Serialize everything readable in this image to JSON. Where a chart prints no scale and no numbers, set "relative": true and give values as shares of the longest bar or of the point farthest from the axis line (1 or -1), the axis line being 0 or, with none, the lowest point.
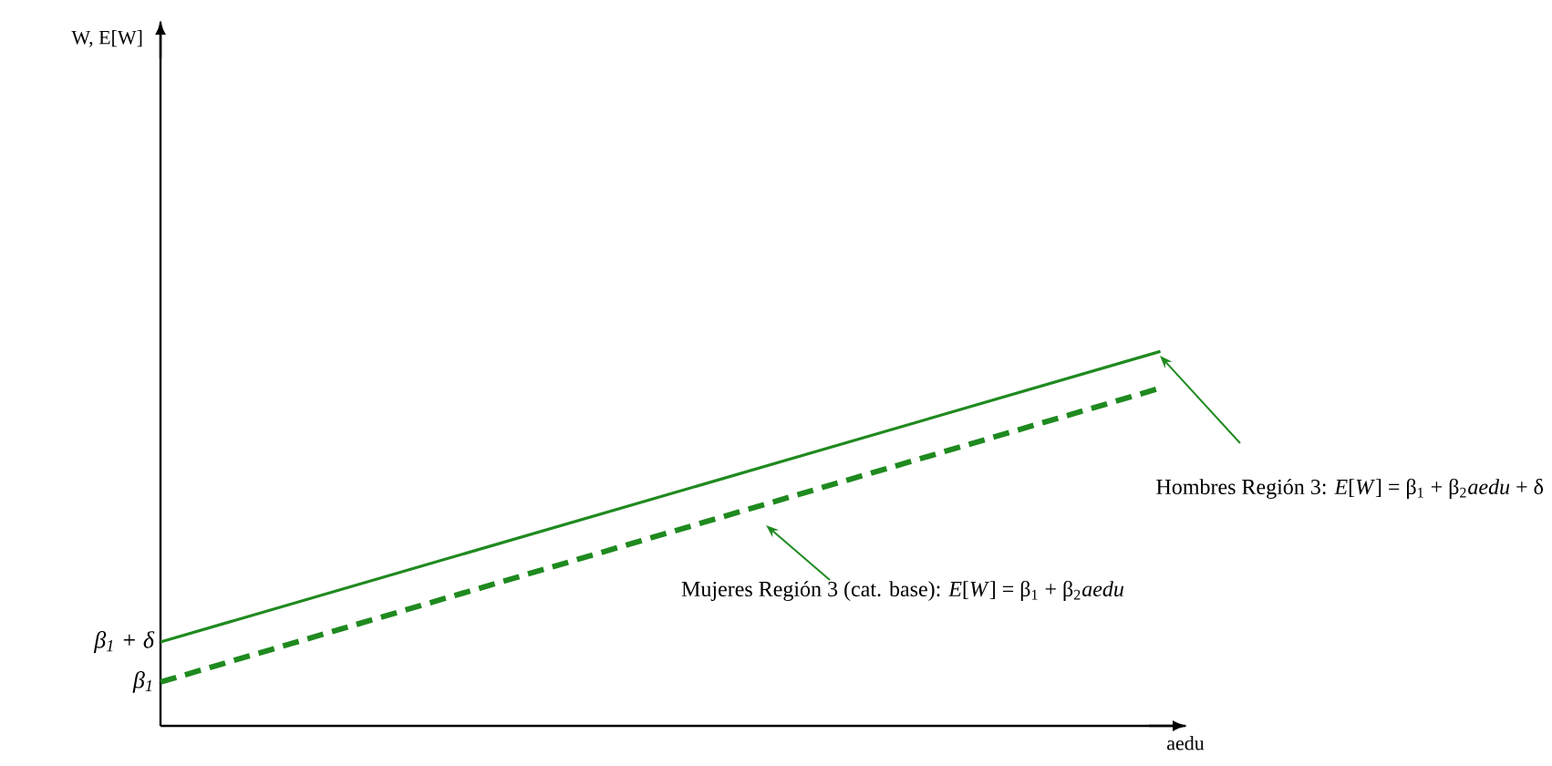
{
  "chart_data": {
    "type": "line",
    "relative": true,
    "xlabel": "aedu",
    "categories": [
      null,
      null
    ],
    "series": [
      {
        "color": "#1f8a1f",
        "line_style": "solid",
        "values": [
          0.224,
          1
        ]
      },
      {
        "color": "#1f8a1f",
        "line_style": "dashed",
        "values": [
          0.117,
          0.902
        ]
      }
    ],
    "annotations": [
      "β$_{1}$ + δ",
      "β$_{1}$",
      "Hombres Región 3: *E*[*W*] = β$_{1}$ + β$_{2}$*aedu* + δ",
      "Mujeres Región 3 (cat. base): *E*[*W*] = β$_{1}$ + β$_{2}$*aedu*",
      "W, E[W]"
    ],
    "marker": "none"
  }
}
